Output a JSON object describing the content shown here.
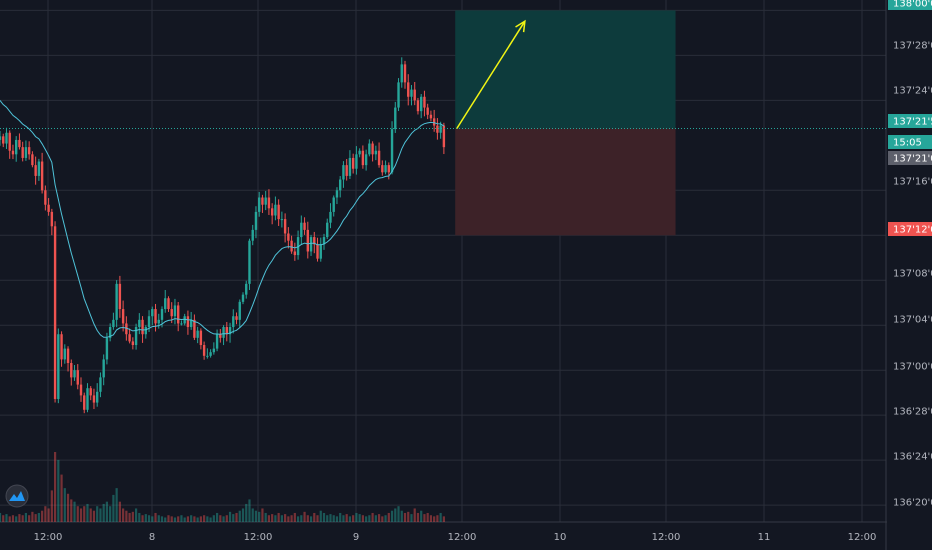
{
  "chart_data": {
    "type": "candlestick",
    "price_axis": {
      "ticks": [
        "138'00'0",
        "137'28'0",
        "137'24'0",
        "137'16'0",
        "137'12'0",
        "137'08'0",
        "137'04'0",
        "137'00'0",
        "136'28'0",
        "136'24'0",
        "136'20'0"
      ],
      "ylim": [
        136.5781,
        138.0234
      ]
    },
    "time_axis": {
      "ticks": [
        "12:00",
        "8",
        "12:00",
        "9",
        "12:00",
        "10",
        "12:00",
        "11",
        "12:00"
      ]
    },
    "price_badges": [
      {
        "label": "138'00'0",
        "value": 138.0,
        "color": "#26a69a"
      },
      {
        "label": "137'21'5",
        "value": 137.6719,
        "color": "#26a69a"
      },
      {
        "label": "15:05",
        "value": 137.6484,
        "color": "#26a69a"
      },
      {
        "label": "137'21'0",
        "value": 137.6563,
        "color": "#5d606b"
      },
      {
        "label": "137'12'0",
        "value": 137.375,
        "color": "#ef5350"
      }
    ],
    "position": {
      "entry": 137.6719,
      "target": 138.0,
      "stop": 137.375,
      "start_time": 140.5,
      "end_time": 208.5,
      "target_color": "#0d3b3c",
      "stop_color": "#3d2228"
    },
    "arrow": {
      "from_time": 141,
      "from_price": 137.6719,
      "to_time": 162,
      "to_price": 137.97,
      "color": "#f1f514"
    },
    "colors": {
      "up": "#26a69a",
      "down": "#ef5350",
      "ma": "#4fc3d9",
      "grid": "#2a2e39",
      "background": "#131722",
      "text": "#b2b5be"
    },
    "candles_close": [
      137.65,
      137.63,
      137.66,
      137.61,
      137.6,
      137.64,
      137.62,
      137.59,
      137.62,
      137.6,
      137.57,
      137.54,
      137.58,
      137.5,
      137.46,
      137.44,
      137.4,
      136.92,
      137.1,
      137.03,
      137.06,
      137.02,
      136.98,
      137.0,
      136.96,
      136.93,
      136.89,
      136.95,
      136.93,
      136.91,
      136.94,
      136.98,
      137.03,
      137.09,
      137.12,
      137.14,
      137.24,
      137.17,
      137.13,
      137.1,
      137.08,
      137.07,
      137.12,
      137.14,
      137.1,
      137.12,
      137.15,
      137.17,
      137.13,
      137.14,
      137.17,
      137.2,
      137.17,
      137.15,
      137.18,
      137.13,
      137.13,
      137.15,
      137.12,
      137.14,
      137.09,
      137.11,
      137.07,
      137.04,
      137.04,
      137.05,
      137.06,
      137.1,
      137.09,
      137.12,
      137.1,
      137.12,
      137.15,
      137.14,
      137.19,
      137.21,
      137.24,
      137.36,
      137.39,
      137.44,
      137.48,
      137.46,
      137.48,
      137.45,
      137.43,
      137.46,
      137.42,
      137.42,
      137.38,
      137.36,
      137.33,
      137.32,
      137.37,
      137.41,
      137.39,
      137.33,
      137.37,
      137.35,
      137.31,
      137.35,
      137.37,
      137.41,
      137.44,
      137.48,
      137.5,
      137.53,
      137.57,
      137.54,
      137.59,
      137.56,
      137.6,
      137.61,
      137.57,
      137.6,
      137.63,
      137.6,
      137.61,
      137.57,
      137.55,
      137.57,
      137.55,
      137.67,
      137.73,
      137.8,
      137.85,
      137.8,
      137.76,
      137.78,
      137.75,
      137.72,
      137.76,
      137.73,
      137.71,
      137.7,
      137.68,
      137.66,
      137.68,
      137.62
    ],
    "candles_volume": [
      8,
      6,
      7,
      5,
      6,
      5,
      7,
      6,
      8,
      6,
      9,
      7,
      8,
      10,
      14,
      12,
      28,
      62,
      55,
      42,
      30,
      25,
      20,
      18,
      14,
      12,
      14,
      16,
      12,
      10,
      14,
      12,
      16,
      18,
      14,
      24,
      30,
      18,
      12,
      10,
      8,
      9,
      12,
      8,
      6,
      7,
      6,
      5,
      8,
      6,
      5,
      4,
      6,
      5,
      4,
      5,
      6,
      4,
      5,
      6,
      5,
      4,
      5,
      6,
      5,
      4,
      6,
      8,
      6,
      5,
      6,
      9,
      7,
      8,
      10,
      12,
      16,
      20,
      12,
      10,
      9,
      12,
      8,
      6,
      7,
      6,
      8,
      6,
      7,
      5,
      6,
      8,
      5,
      6,
      9,
      6,
      5,
      8,
      6,
      10,
      8,
      6,
      7,
      6,
      5,
      8,
      6,
      7,
      5,
      6,
      8,
      7,
      6,
      5,
      6,
      8,
      6,
      7,
      5,
      6,
      8,
      10,
      12,
      14,
      10,
      8,
      9,
      7,
      12,
      8,
      10,
      7,
      8,
      6,
      5,
      6,
      8,
      5
    ]
  }
}
